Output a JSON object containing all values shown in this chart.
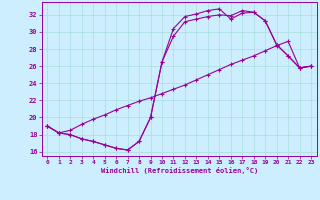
{
  "xlabel": "Windchill (Refroidissement éolien,°C)",
  "line_color": "#990099",
  "bg_color": "#cceeff",
  "grid_color": "#aadddd",
  "xlim": [
    -0.5,
    23.5
  ],
  "ylim": [
    15.5,
    33.5
  ],
  "yticks": [
    16,
    18,
    20,
    22,
    24,
    26,
    28,
    30,
    32
  ],
  "xticks": [
    0,
    1,
    2,
    3,
    4,
    5,
    6,
    7,
    8,
    9,
    10,
    11,
    12,
    13,
    14,
    15,
    16,
    17,
    18,
    19,
    20,
    21,
    22,
    23
  ],
  "line1_x": [
    0,
    1,
    2,
    3,
    4,
    5,
    6,
    7,
    8,
    9,
    10,
    11,
    12,
    13,
    14,
    15,
    16,
    17,
    18,
    19,
    20,
    21,
    22,
    23
  ],
  "line1_y": [
    19.0,
    18.2,
    18.0,
    17.5,
    17.2,
    16.8,
    16.4,
    16.2,
    17.2,
    20.0,
    26.5,
    30.4,
    31.8,
    32.1,
    32.5,
    32.7,
    31.5,
    32.2,
    32.3,
    31.3,
    28.5,
    27.2,
    25.8,
    26.0
  ],
  "line2_x": [
    0,
    1,
    2,
    3,
    4,
    5,
    6,
    7,
    8,
    9,
    10,
    11,
    12,
    13,
    14,
    15,
    16,
    17,
    18,
    19,
    20,
    21,
    22,
    23
  ],
  "line2_y": [
    19.0,
    18.2,
    18.5,
    19.2,
    19.8,
    20.3,
    20.9,
    21.4,
    21.9,
    22.3,
    22.8,
    23.3,
    23.8,
    24.4,
    25.0,
    25.6,
    26.2,
    26.7,
    27.2,
    27.8,
    28.4,
    28.9,
    25.8,
    26.0
  ],
  "line3_x": [
    0,
    1,
    2,
    3,
    4,
    5,
    6,
    7,
    8,
    9,
    10,
    11,
    12,
    13,
    14,
    15,
    16,
    17,
    18,
    19,
    20,
    21,
    22,
    23
  ],
  "line3_y": [
    19.0,
    18.2,
    18.0,
    17.5,
    17.2,
    16.8,
    16.4,
    16.2,
    17.2,
    20.0,
    26.5,
    29.5,
    31.2,
    31.5,
    31.8,
    32.0,
    31.9,
    32.5,
    32.3,
    31.3,
    28.5,
    27.2,
    25.8,
    26.0
  ]
}
